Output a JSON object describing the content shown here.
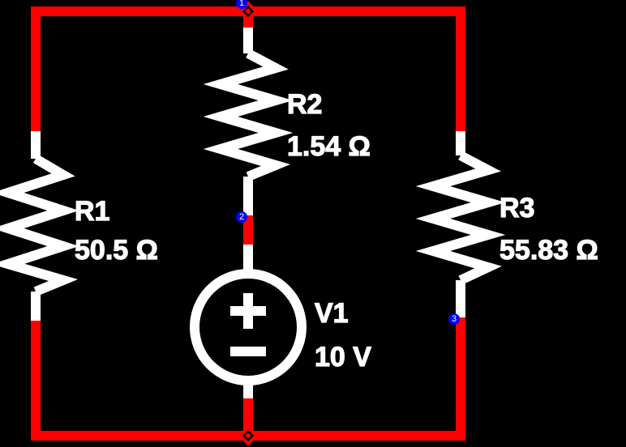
{
  "colors": {
    "background": "#000000",
    "wire": "#ff0000",
    "component": "#ffffff",
    "node_marker": "#0000ff"
  },
  "components": {
    "r1": {
      "name": "R1",
      "value": "50.5 Ω"
    },
    "r2": {
      "name": "R2",
      "value": "1.54 Ω"
    },
    "r3": {
      "name": "R3",
      "value": "55.83 Ω"
    },
    "v1": {
      "name": "V1",
      "value": "10 V"
    }
  },
  "nodes": [
    {
      "id": "1"
    },
    {
      "id": "2"
    },
    {
      "id": "3"
    }
  ]
}
